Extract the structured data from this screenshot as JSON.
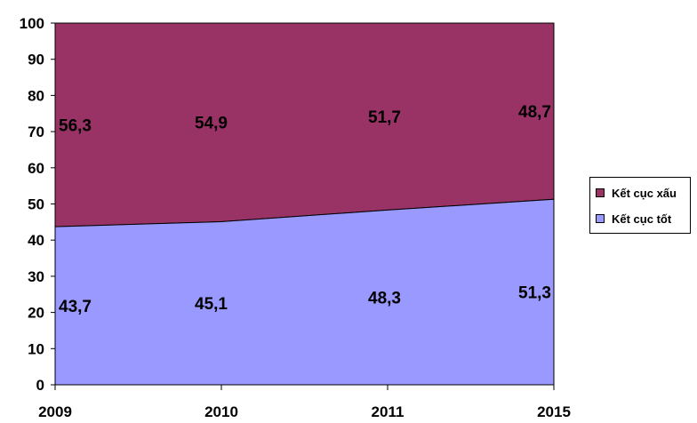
{
  "chart_data": {
    "type": "area",
    "stacked": true,
    "categories": [
      "2009",
      "2010",
      "2011",
      "2015"
    ],
    "series": [
      {
        "name": "Kết cục tốt",
        "values": [
          43.7,
          45.1,
          48.3,
          51.3
        ],
        "value_labels": [
          "43,7",
          "45,1",
          "48,3",
          "51,3"
        ],
        "color": "#9999FF"
      },
      {
        "name": "Kết cục xấu",
        "values": [
          56.3,
          54.9,
          51.7,
          48.7
        ],
        "value_labels": [
          "56,3",
          "54,9",
          "51,7",
          "48,7"
        ],
        "color": "#993366"
      }
    ],
    "y_ticks": [
      "0",
      "10",
      "20",
      "30",
      "40",
      "50",
      "60",
      "70",
      "80",
      "90",
      "100"
    ],
    "ylim": [
      0,
      100
    ],
    "grid": false,
    "legend_position": "right"
  }
}
